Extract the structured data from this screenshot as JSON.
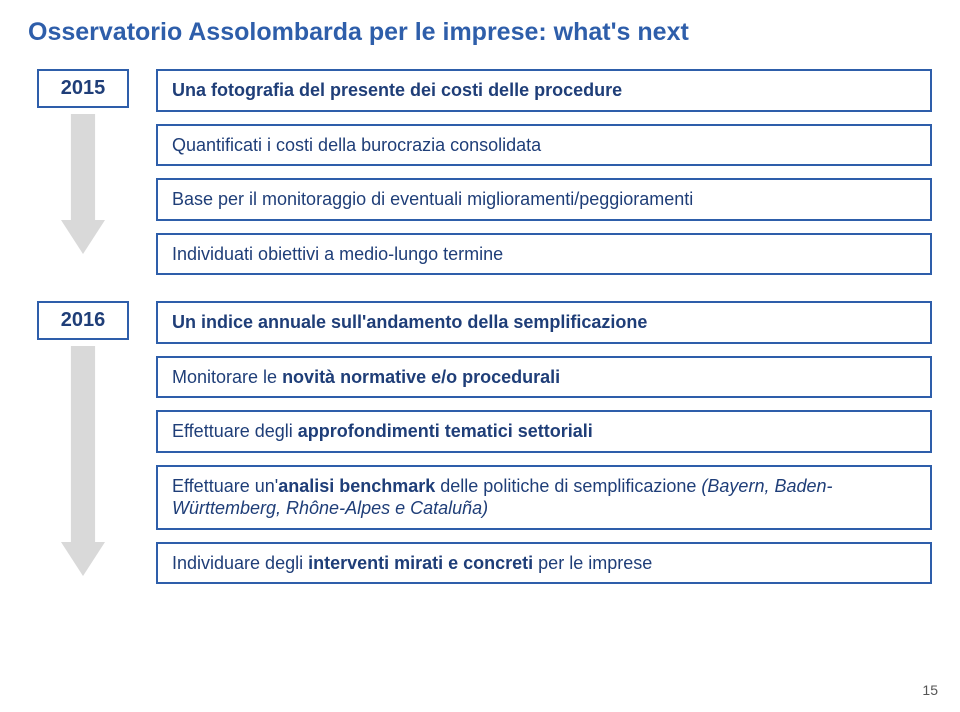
{
  "title": "Osservatorio Assolombarda per le imprese: what's next",
  "title_color": "#2e5eaa",
  "section1": {
    "year": "2015",
    "year_color": "#1f3e78",
    "border_color": "#2e5eaa",
    "arrow_fill": "#d9d9d9",
    "arrow_height": 140,
    "arrow_width": 44,
    "headline": "Una fotografia del presente dei costi delle procedure",
    "boxes": [
      "Quantificati i costi della burocrazia consolidata",
      "Base per il monitoraggio di eventuali miglioramenti/peggioramenti",
      "Individuati obiettivi a medio-lungo termine"
    ],
    "text_color": "#1f3e78",
    "sub_text_color": "#1f3e78"
  },
  "section2": {
    "year": "2016",
    "year_color": "#1f3e78",
    "border_color": "#2e5eaa",
    "arrow_fill": "#d9d9d9",
    "arrow_height": 230,
    "arrow_width": 44,
    "headline": "Un indice annuale sull'andamento della semplificazione",
    "boxes_html": [
      "Monitorare le <span class='bold'>novità normative e/o procedurali</span>",
      "Effettuare degli <span class='bold'>approfondimenti tematici settoriali</span>",
      "Effettuare un'<span class='bold'>analisi benchmark</span> delle politiche di semplificazione <i>(Bayern, Baden-Württemberg, Rhône-Alpes e Cataluña)</i>",
      "Individuare degli <span class='bold'>interventi mirati e concreti</span> per le imprese"
    ],
    "text_color": "#1f3e78"
  },
  "page_number": "15"
}
